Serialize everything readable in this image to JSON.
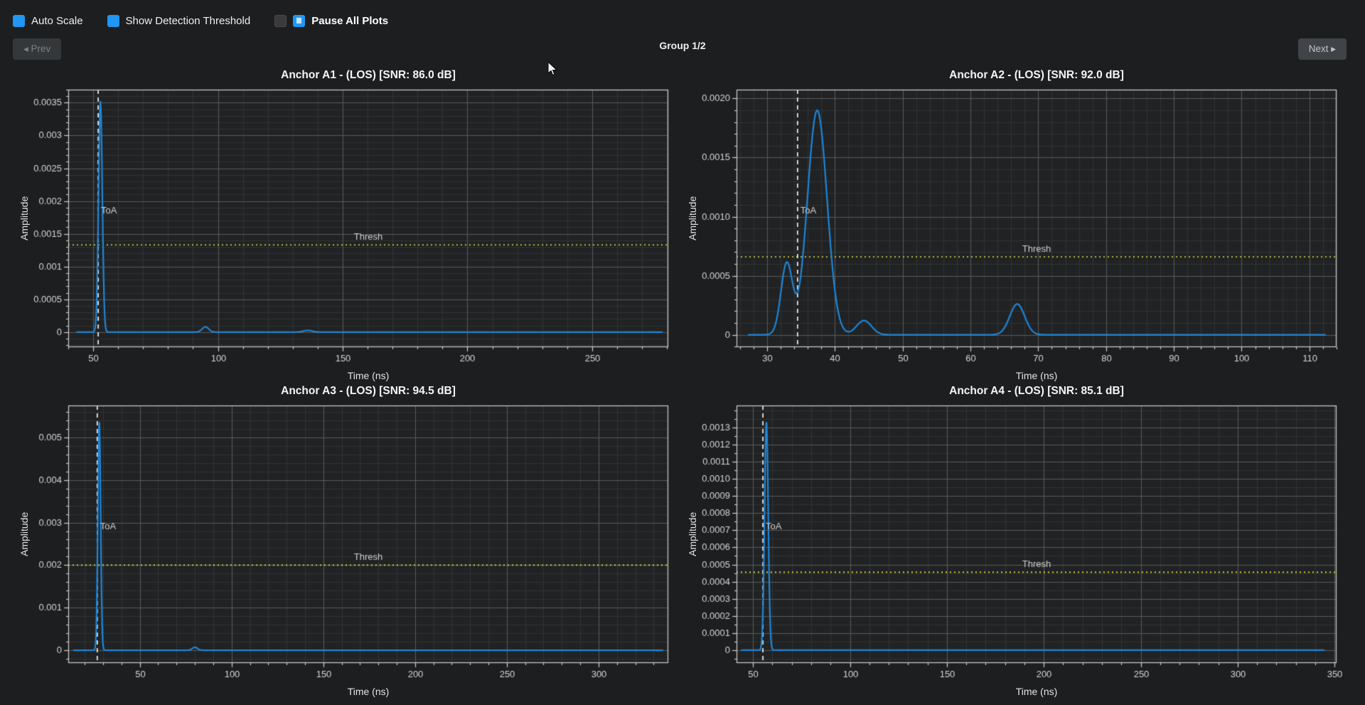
{
  "toolbar": {
    "checkboxes": [
      {
        "label": "Auto Scale",
        "checked": true
      },
      {
        "label": "Show Detection Threshold",
        "checked": true
      },
      {
        "label": "Pause All Plots",
        "checked": false
      }
    ],
    "pause_icon": "pause-icon",
    "accent_color": "#2196f3"
  },
  "nav": {
    "prev_label": "◂ Prev",
    "group_label": "Group 1/2",
    "next_label": "Next ▸"
  },
  "theme": {
    "page_bg": "#1d1e1f",
    "plot_bg": "#212223",
    "grid_major": "#5a5a5a",
    "grid_minor": "#323334",
    "spine": "#c6c6c6",
    "tick_label": "#d6d6d6",
    "curve": "#1e86d8",
    "toa_line": "#ffffff",
    "threshold_line": "#e6e64a",
    "annotation_text": "#cfcfcf"
  },
  "chart_data": [
    {
      "type": "line",
      "title": "Anchor A1 - (LOS) [SNR: 86.0 dB]",
      "anchor": "A1",
      "condition": "LOS",
      "snr_db": 86.0,
      "xlabel": "Time (ns)",
      "ylabel": "Amplitude",
      "xlim": [
        40,
        280.5
      ],
      "ylim": [
        -0.00023,
        0.0037
      ],
      "xticks": [
        50,
        100,
        150,
        200,
        250
      ],
      "yticks": [
        0,
        0.0005,
        0.001,
        0.0015,
        0.002,
        0.0025,
        0.003,
        0.0035
      ],
      "ytick_labels": [
        "0",
        "0.0005",
        "0.001",
        "0.0015",
        "0.002",
        "0.0025",
        "0.003",
        "0.0035"
      ],
      "x_minor": 10,
      "y_minor": 0.0001,
      "toa": {
        "x": 52,
        "label": "ToA"
      },
      "threshold": {
        "y": 0.00133,
        "label": "Thresh"
      },
      "peaks": [
        {
          "c": 52.9,
          "h": 0.00352,
          "w": 0.75
        },
        {
          "c": 95,
          "h": 8e-05,
          "w": 1.3
        },
        {
          "c": 136,
          "h": 2.5e-05,
          "w": 1.8
        }
      ],
      "data_xrange": [
        43.5,
        278
      ]
    },
    {
      "type": "line",
      "title": "Anchor A2 - (LOS) [SNR: 92.0 dB]",
      "anchor": "A2",
      "condition": "LOS",
      "snr_db": 92.0,
      "xlabel": "Time (ns)",
      "ylabel": "Amplitude",
      "xlim": [
        25.5,
        114
      ],
      "ylim": [
        -0.000105,
        0.002075
      ],
      "xticks": [
        30,
        40,
        50,
        60,
        70,
        80,
        90,
        100,
        110
      ],
      "yticks": [
        0,
        0.0005,
        0.001,
        0.0015,
        0.002
      ],
      "ytick_labels": [
        "0",
        "0.0005",
        "0.0010",
        "0.0015",
        "0.0020"
      ],
      "x_minor": 2,
      "y_minor": 0.0001,
      "toa": {
        "x": 34.5,
        "label": "ToA"
      },
      "threshold": {
        "y": 0.00066,
        "label": "Thresh"
      },
      "peaks": [
        {
          "c": 32.9,
          "h": 0.0006,
          "w": 0.85
        },
        {
          "c": 37.4,
          "h": 0.0019,
          "w": 1.45
        },
        {
          "c": 44.3,
          "h": 0.00012,
          "w": 1.1
        },
        {
          "c": 66.9,
          "h": 0.00026,
          "w": 1.1
        }
      ],
      "data_xrange": [
        27.3,
        112.3
      ]
    },
    {
      "type": "line",
      "title": "Anchor A3 - (LOS) [SNR: 94.5 dB]",
      "anchor": "A3",
      "condition": "LOS",
      "snr_db": 94.5,
      "xlabel": "Time (ns)",
      "ylabel": "Amplitude",
      "xlim": [
        11,
        338
      ],
      "ylim": [
        -0.0003,
        0.00575
      ],
      "xticks": [
        50,
        100,
        150,
        200,
        250,
        300
      ],
      "yticks": [
        0,
        0.001,
        0.002,
        0.003,
        0.004,
        0.005
      ],
      "ytick_labels": [
        "0",
        "0.001",
        "0.002",
        "0.003",
        "0.004",
        "0.005"
      ],
      "x_minor": 10,
      "y_minor": 0.0002,
      "toa": {
        "x": 26.8,
        "label": "ToA"
      },
      "threshold": {
        "y": 0.002,
        "label": "Thresh"
      },
      "peaks": [
        {
          "c": 27.9,
          "h": 0.0054,
          "w": 0.75
        },
        {
          "c": 80,
          "h": 7e-05,
          "w": 1.4
        }
      ],
      "data_xrange": [
        14,
        335
      ]
    },
    {
      "type": "line",
      "title": "Anchor A4 - (LOS) [SNR: 85.1 dB]",
      "anchor": "A4",
      "condition": "LOS",
      "snr_db": 85.1,
      "xlabel": "Time (ns)",
      "ylabel": "Amplitude",
      "xlim": [
        41.5,
        351
      ],
      "ylim": [
        -7.5e-05,
        0.001428
      ],
      "xticks": [
        50,
        100,
        150,
        200,
        250,
        300,
        350
      ],
      "yticks": [
        0,
        0.0001,
        0.0002,
        0.0003,
        0.0004,
        0.0005,
        0.0006,
        0.0007,
        0.0008,
        0.0009,
        0.001,
        0.0011,
        0.0012,
        0.0013
      ],
      "ytick_labels": [
        "0",
        "0.0001",
        "0.0002",
        "0.0003",
        "0.0004",
        "0.0005",
        "0.0006",
        "0.0007",
        "0.0008",
        "0.0009",
        "0.0010",
        "0.0011",
        "0.0012",
        "0.0013"
      ],
      "x_minor": 10,
      "y_minor": 5e-05,
      "toa": {
        "x": 55.1,
        "label": "ToA"
      },
      "threshold": {
        "y": 0.000455,
        "label": "Thresh"
      },
      "peaks": [
        {
          "c": 56.9,
          "h": 0.00134,
          "w": 0.95
        }
      ],
      "data_xrange": [
        44.2,
        344.5
      ]
    }
  ]
}
